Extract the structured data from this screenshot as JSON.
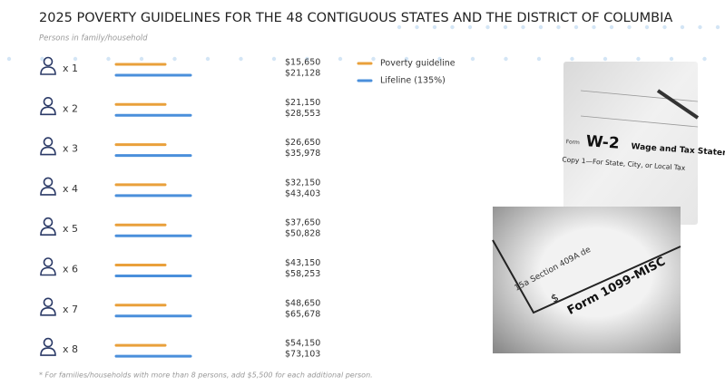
{
  "header": {
    "title": "2025 POVERTY GUIDELINES FOR THE 48 CONTIGUOUS STATES AND THE DISTRICT OF COLUMBIA",
    "subtitle": "Persons in family/household"
  },
  "legend": {
    "items": [
      {
        "label": "Poverty guideline",
        "color": "#e9a03b"
      },
      {
        "label": "Lifeline (135%)",
        "color": "#4a8fdb"
      }
    ]
  },
  "rows": [
    {
      "count": "x 1",
      "poverty": "$15,650",
      "lifeline": "$21,128"
    },
    {
      "count": "x 2",
      "poverty": "$21,150",
      "lifeline": "$28,553"
    },
    {
      "count": "x 3",
      "poverty": "$26,650",
      "lifeline": "$35,978"
    },
    {
      "count": "x 4",
      "poverty": "$32,150",
      "lifeline": "$43,403"
    },
    {
      "count": "x 5",
      "poverty": "$37,650",
      "lifeline": "$50,828"
    },
    {
      "count": "x 6",
      "poverty": "$43,150",
      "lifeline": "$58,253"
    },
    {
      "count": "x 7",
      "poverty": "$48,650",
      "lifeline": "$65,678"
    },
    {
      "count": "x 8",
      "poverty": "$54,150",
      "lifeline": "$73,103"
    }
  ],
  "images": {
    "w2": {
      "form": "Form",
      "code": "W-2",
      "name": "Wage and Tax Statement",
      "copy": "Copy 1—For State, City, or Local Tax"
    },
    "misc": {
      "line": "15a Section 409A de",
      "dollar": "$",
      "form": "Form 1099-MISC"
    }
  },
  "footnote": "* For families/households with more than 8 persons, add $5,500 for each additional person."
}
